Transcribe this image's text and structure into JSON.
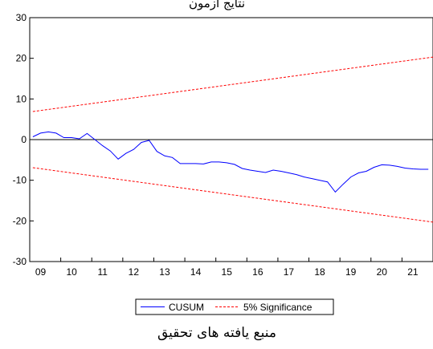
{
  "header_text": "نتایج آزمون",
  "caption": "منبع یافته های تحقیق",
  "chart_data": {
    "type": "line",
    "title": "",
    "xlabel": "",
    "ylabel": "",
    "xlim": [
      2008.9,
      2021.9
    ],
    "ylim": [
      -30,
      30
    ],
    "x_ticks": [
      "09",
      "10",
      "11",
      "12",
      "13",
      "14",
      "15",
      "16",
      "17",
      "18",
      "19",
      "20",
      "21"
    ],
    "y_ticks": [
      "30",
      "20",
      "10",
      "0",
      "-10",
      "-20",
      "-30"
    ],
    "grid": false,
    "legend": "bottom",
    "colors": {
      "cusum": "#0000ff",
      "significance": "#ff0000",
      "zero_line": "#000000"
    },
    "series": [
      {
        "name": "CUSUM",
        "x": [
          2009.0,
          2009.25,
          2009.5,
          2009.75,
          2010.0,
          2010.25,
          2010.5,
          2010.75,
          2011.0,
          2011.25,
          2011.5,
          2011.75,
          2012.0,
          2012.25,
          2012.5,
          2012.75,
          2013.0,
          2013.25,
          2013.5,
          2013.75,
          2014.0,
          2014.25,
          2014.5,
          2014.75,
          2015.0,
          2015.25,
          2015.5,
          2015.75,
          2016.0,
          2016.25,
          2016.5,
          2016.75,
          2017.0,
          2017.25,
          2017.5,
          2017.75,
          2018.0,
          2018.25,
          2018.5,
          2018.75,
          2019.0,
          2019.25,
          2019.5,
          2019.75,
          2020.0,
          2020.25,
          2020.5,
          2020.75,
          2021.0,
          2021.25,
          2021.5,
          2021.75
        ],
        "values": [
          0.7,
          1.6,
          1.9,
          1.6,
          0.5,
          0.5,
          0.2,
          1.5,
          0.0,
          -1.5,
          -2.8,
          -4.8,
          -3.4,
          -2.4,
          -0.7,
          -0.2,
          -2.9,
          -4.0,
          -4.4,
          -5.9,
          -5.9,
          -5.9,
          -6.0,
          -5.5,
          -5.5,
          -5.7,
          -6.1,
          -7.1,
          -7.5,
          -7.8,
          -8.1,
          -7.5,
          -7.8,
          -8.2,
          -8.6,
          -9.2,
          -9.6,
          -10.0,
          -10.4,
          -12.9,
          -11.0,
          -9.2,
          -8.2,
          -7.8,
          -6.8,
          -6.2,
          -6.3,
          -6.6,
          -7.0,
          -7.2,
          -7.3,
          -7.3
        ]
      },
      {
        "name": "5% Significance",
        "x": [
          2009.0,
          2021.9
        ],
        "upper": [
          6.9,
          20.3
        ],
        "lower": [
          -6.9,
          -20.3
        ]
      }
    ]
  }
}
